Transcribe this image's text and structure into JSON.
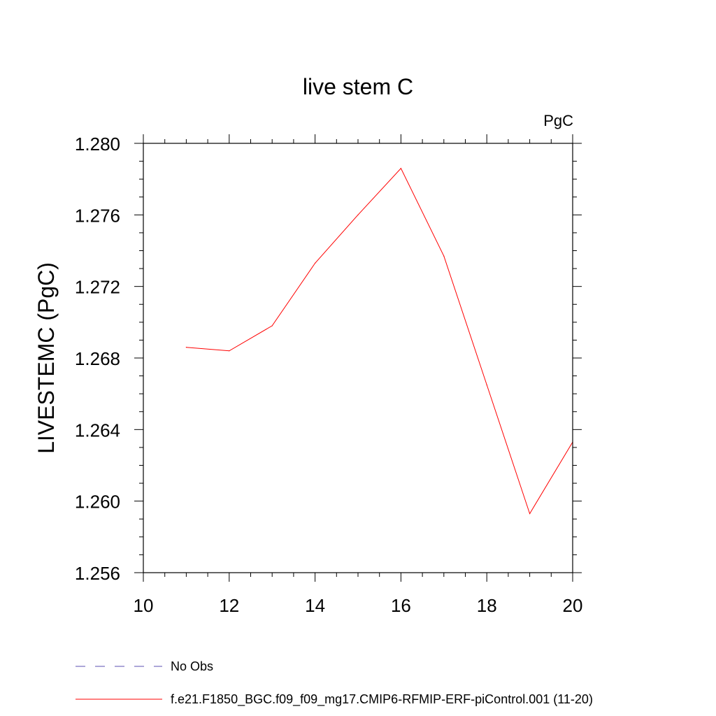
{
  "chart_data": {
    "type": "line",
    "title": "live stem C",
    "units": "PgC",
    "xlabel": "",
    "ylabel": "LIVESTEMC  (PgC)",
    "xlim": [
      10,
      20
    ],
    "ylim": [
      1.256,
      1.28
    ],
    "x_ticks": [
      "10",
      "12",
      "14",
      "16",
      "18",
      "20"
    ],
    "y_ticks": [
      "1.256",
      "1.260",
      "1.264",
      "1.268",
      "1.272",
      "1.276",
      "1.280"
    ],
    "grid": false,
    "series": [
      {
        "name": "f.e21.F1850_BGC.f09_f09_mg17.CMIP6-RFMIP-ERF-piControl.001 (11-20)",
        "color": "#ff0000",
        "x": [
          11,
          12,
          13,
          14,
          15,
          16,
          17,
          18,
          19,
          20
        ],
        "values": [
          1.2686,
          1.2684,
          1.2698,
          1.2733,
          1.276,
          1.2786,
          1.2737,
          1.2665,
          1.2593,
          1.2633
        ]
      }
    ],
    "legend": [
      {
        "label": "No Obs",
        "color": "#5b4fb0",
        "style": "dashed"
      },
      {
        "label": "f.e21.F1850_BGC.f09_f09_mg17.CMIP6-RFMIP-ERF-piControl.001 (11-20)",
        "color": "#ff0000",
        "style": "solid"
      }
    ],
    "legend_position": "bottom-left"
  }
}
